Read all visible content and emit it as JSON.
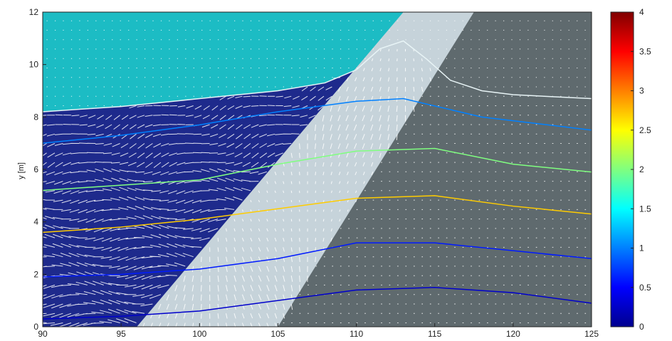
{
  "chart_data": {
    "type": "contour-quiver",
    "xlabel": "",
    "ylabel": "y [m]",
    "xlim": [
      90,
      125
    ],
    "ylim": [
      0,
      12
    ],
    "x_ticks": [
      "90",
      "95",
      "100",
      "105",
      "110",
      "115",
      "120",
      "125"
    ],
    "y_ticks": [
      "0",
      "2",
      "4",
      "6",
      "8",
      "10",
      "12"
    ],
    "colorbar": {
      "range": [
        0,
        4
      ],
      "ticks": [
        "0",
        "0.5",
        "1",
        "1.5",
        "2",
        "2.5",
        "3",
        "3.5",
        "4"
      ]
    },
    "regions": {
      "air": {
        "color": "#1cbcc4"
      },
      "water": {
        "color": "#1e2a8c"
      },
      "porous_core": {
        "color": "#c6d3da",
        "bottom_x": [
          96,
          105
        ],
        "top_x": [
          113,
          117.5
        ]
      },
      "impermeable_body": {
        "color": "#5f6a6e"
      },
      "crown_wall": {
        "color": "#aebcc2"
      }
    },
    "free_surface": [
      [
        90,
        8.2
      ],
      [
        95,
        8.4
      ],
      [
        100,
        8.7
      ],
      [
        105,
        9.0
      ],
      [
        108,
        9.3
      ],
      [
        110,
        9.8
      ],
      [
        111.5,
        10.6
      ],
      [
        113,
        10.9
      ],
      [
        114.5,
        10.2
      ],
      [
        116,
        9.4
      ],
      [
        118,
        9.0
      ],
      [
        120,
        8.85
      ],
      [
        125,
        8.7
      ]
    ],
    "contour_series": [
      {
        "level": 0.3,
        "points": [
          [
            90,
            0.3
          ],
          [
            95,
            0.4
          ],
          [
            100,
            0.6
          ],
          [
            105,
            1.0
          ],
          [
            110,
            1.4
          ],
          [
            115,
            1.5
          ],
          [
            120,
            1.3
          ],
          [
            125,
            0.9
          ]
        ]
      },
      {
        "level": 0.6,
        "points": [
          [
            90,
            1.9
          ],
          [
            95,
            2.0
          ],
          [
            100,
            2.2
          ],
          [
            105,
            2.6
          ],
          [
            110,
            3.2
          ],
          [
            115,
            3.2
          ],
          [
            120,
            2.9
          ],
          [
            125,
            2.6
          ]
        ]
      },
      {
        "level": 2.7,
        "points": [
          [
            90,
            3.6
          ],
          [
            95,
            3.8
          ],
          [
            100,
            4.1
          ],
          [
            105,
            4.5
          ],
          [
            110,
            4.9
          ],
          [
            115,
            5.0
          ],
          [
            120,
            4.6
          ],
          [
            125,
            4.3
          ]
        ]
      },
      {
        "level": 2.0,
        "points": [
          [
            90,
            5.2
          ],
          [
            95,
            5.4
          ],
          [
            100,
            5.6
          ],
          [
            105,
            6.2
          ],
          [
            110,
            6.7
          ],
          [
            115,
            6.8
          ],
          [
            120,
            6.2
          ],
          [
            125,
            5.9
          ]
        ]
      },
      {
        "level": 1.0,
        "points": [
          [
            90,
            7.0
          ],
          [
            95,
            7.3
          ],
          [
            100,
            7.7
          ],
          [
            105,
            8.2
          ],
          [
            110,
            8.6
          ],
          [
            113,
            8.7
          ],
          [
            118,
            8.0
          ],
          [
            125,
            7.5
          ]
        ]
      }
    ]
  }
}
